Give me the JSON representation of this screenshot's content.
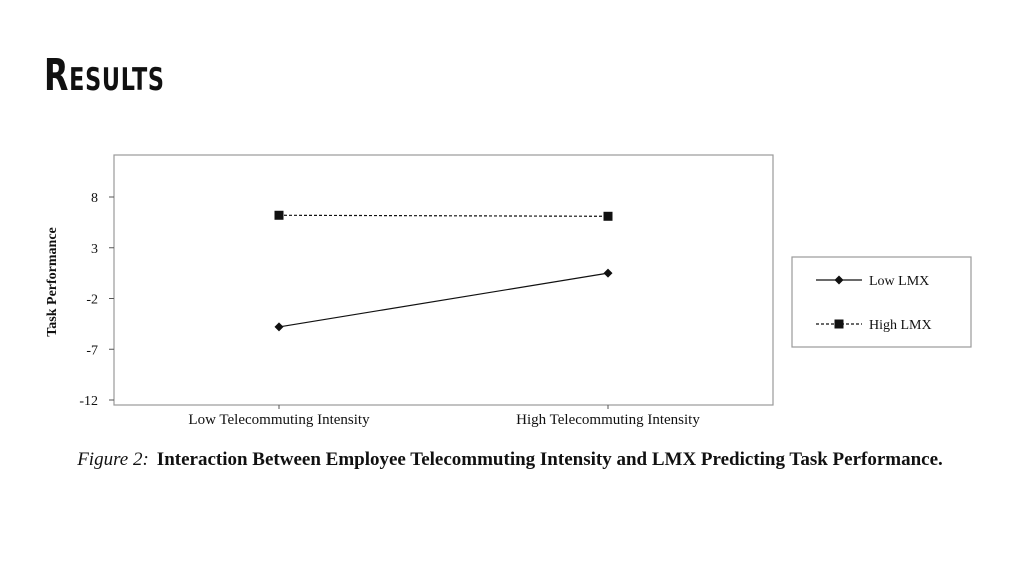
{
  "slide": {
    "title": "Results"
  },
  "chart_data": {
    "type": "line",
    "categories": [
      "Low Telecommuting Intensity",
      "High Telecommuting Intensity"
    ],
    "series": [
      {
        "name": "Low LMX",
        "values": [
          -4.8,
          0.5
        ],
        "color": "#111111",
        "dash": "solid",
        "marker": "diamond"
      },
      {
        "name": "High LMX",
        "values": [
          6.2,
          6.1
        ],
        "color": "#111111",
        "dash": "dashed",
        "marker": "square"
      }
    ],
    "ylabel": "Task Performance",
    "yticks": [
      8,
      3,
      -2,
      -7,
      -12
    ],
    "ylim": [
      -12,
      12
    ],
    "legend_position": "right"
  },
  "caption": {
    "figure_label": "Figure 2:",
    "text": "Interaction Between Employee Telecommuting Intensity and LMX Predicting Task Performance."
  }
}
